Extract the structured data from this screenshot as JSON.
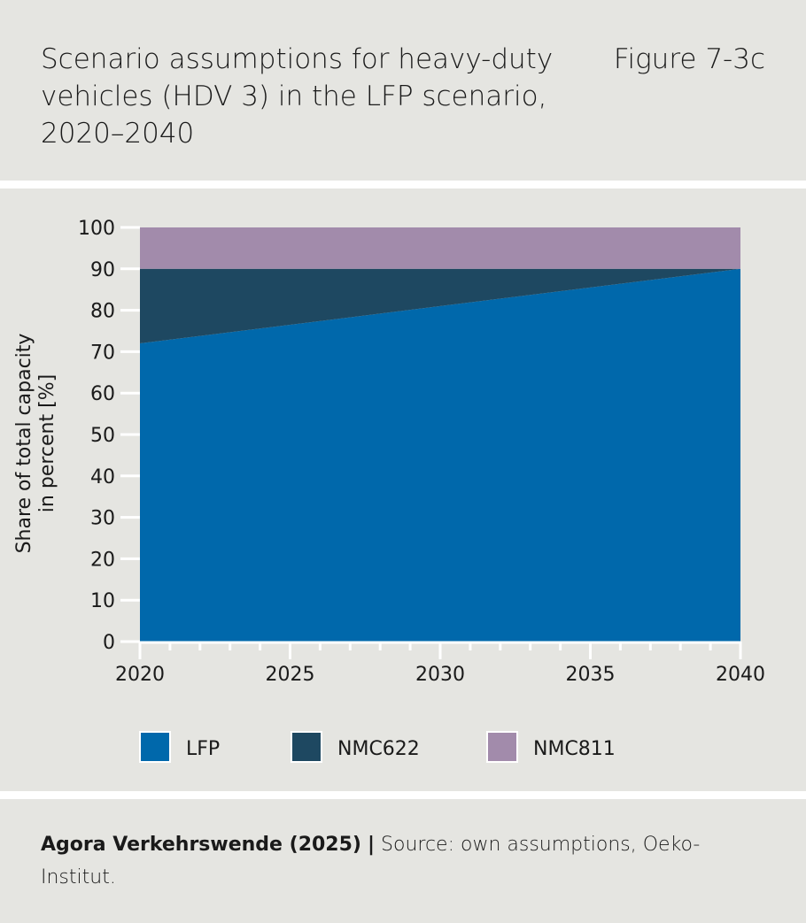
{
  "header": {
    "title": "Scenario assumptions for heavy-duty vehicles (HDV 3) in the LFP scenario, 2020–2040",
    "figure_label": "Figure 7-3c"
  },
  "footer": {
    "publisher": "Agora Verkehrswende (2025)",
    "separator": "|",
    "source": "Source: own assumptions, Oeko-Institut."
  },
  "chart_data": {
    "type": "area",
    "stacked": true,
    "ylabel": "Share of total capacity in percent [%]",
    "xlabel": "",
    "x": [
      2020,
      2040
    ],
    "xticks": [
      "2020",
      "2025",
      "2030",
      "2035",
      "2040"
    ],
    "yticks": [
      "0",
      "10",
      "20",
      "30",
      "40",
      "50",
      "60",
      "70",
      "80",
      "90",
      "100"
    ],
    "ylim": [
      0,
      100
    ],
    "xlim": [
      2020,
      2040
    ],
    "grid": false,
    "legend_position": "bottom",
    "series": [
      {
        "name": "LFP",
        "values": [
          72,
          90
        ],
        "color": "#0068ab"
      },
      {
        "name": "NMC622",
        "values": [
          18,
          0
        ],
        "color": "#1e4861"
      },
      {
        "name": "NMC811",
        "values": [
          10,
          10
        ],
        "color": "#a28bab"
      }
    ]
  }
}
